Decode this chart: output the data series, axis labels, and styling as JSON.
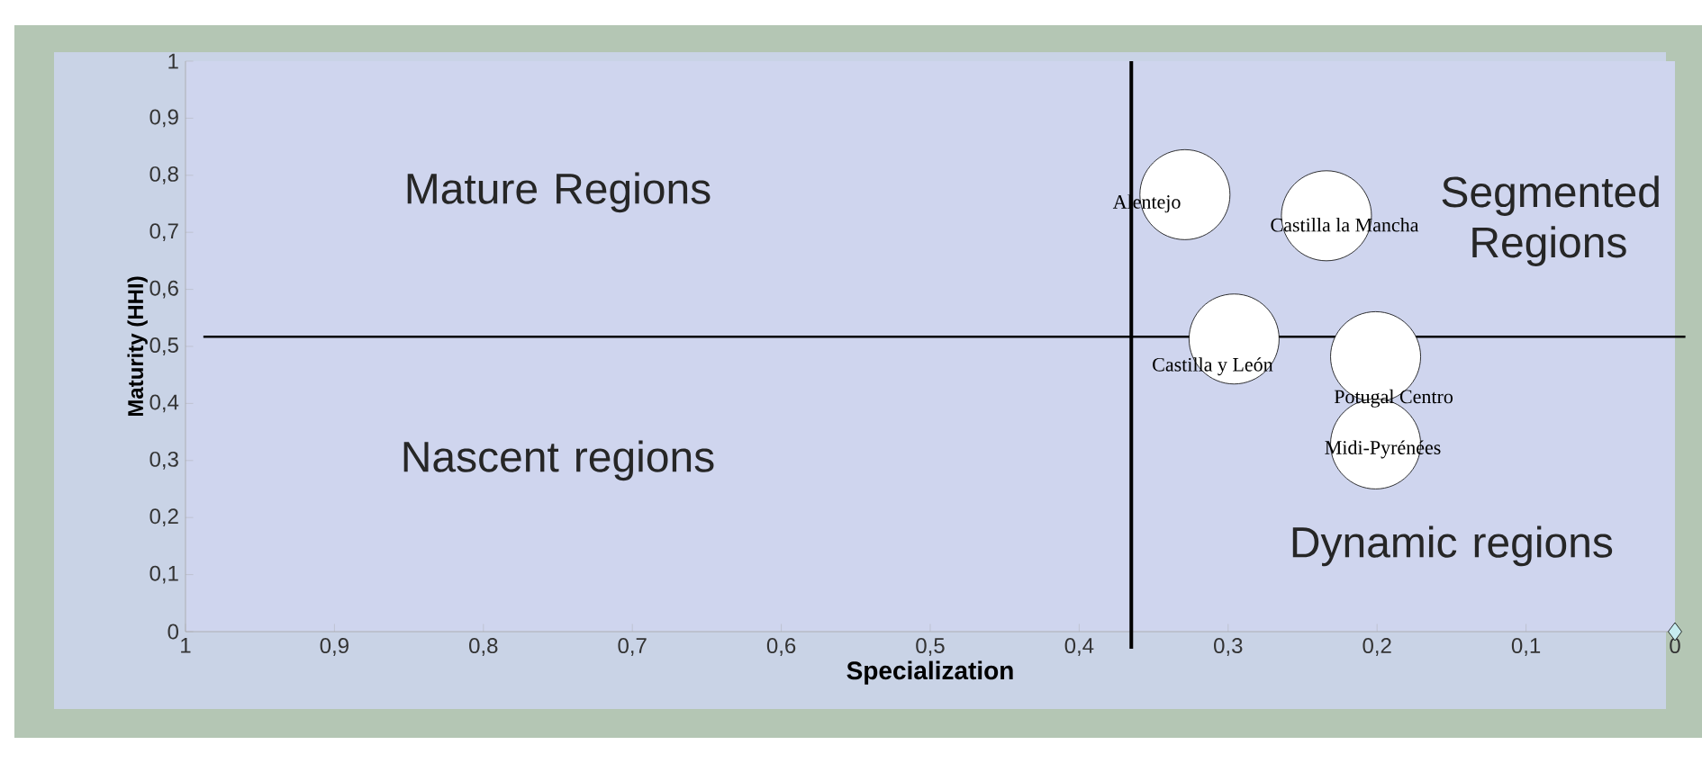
{
  "chart_data": {
    "type": "bubble",
    "xlabel": "Specialization",
    "ylabel": "Maturity (HHI)",
    "xlim": [
      1,
      0
    ],
    "ylim": [
      0,
      1
    ],
    "xticks": [
      1,
      {
        "value": 0.9,
        "label": "0,9"
      },
      {
        "value": 0.8,
        "label": "0,8"
      },
      {
        "value": 0.7,
        "label": "0,7"
      },
      {
        "value": 0.6,
        "label": "0,6"
      },
      {
        "value": 0.5,
        "label": "0,5"
      },
      {
        "value": 0.4,
        "label": "0,4"
      },
      {
        "value": 0.3,
        "label": "0,3"
      },
      {
        "value": 0.2,
        "label": "0,2"
      },
      {
        "value": 0.1,
        "label": "0,1"
      },
      0
    ],
    "yticks": [
      0,
      {
        "value": 0.1,
        "label": "0,1"
      },
      {
        "value": 0.2,
        "label": "0,2"
      },
      {
        "value": 0.3,
        "label": "0,3"
      },
      {
        "value": 0.4,
        "label": "0,4"
      },
      {
        "value": 0.5,
        "label": "0,5"
      },
      {
        "value": 0.6,
        "label": "0,6"
      },
      {
        "value": 0.7,
        "label": "0,7"
      },
      {
        "value": 0.8,
        "label": "0,8"
      },
      {
        "value": 0.9,
        "label": "0,9"
      },
      1
    ],
    "series": [
      {
        "color": "#ffffff",
        "x": [
          0.329,
          0.234,
          0.296,
          0.201,
          0.201
        ],
        "values": [
          0.766,
          0.729,
          0.513,
          0.482,
          0.329
        ],
        "sizes": [
          1,
          1,
          1,
          1,
          1
        ]
      },
      {
        "type": "scatter",
        "color": "#c6ecf0",
        "marker": "diamond",
        "x": [
          0
        ],
        "values": [
          0
        ]
      }
    ],
    "ref_lines": [
      {
        "axis": "x",
        "value": 0.365
      },
      {
        "axis": "y",
        "value": 0.517
      }
    ],
    "annotations": [
      {
        "text": "Alentejo",
        "x": 0.329,
        "y": 0.766
      },
      {
        "text": "Castilla la Mancha",
        "x": 0.234,
        "y": 0.729
      },
      {
        "text": "Castilla y León",
        "x": 0.296,
        "y": 0.513
      },
      {
        "text": "Potugal Centro",
        "x": 0.201,
        "y": 0.482
      },
      {
        "text": "Midi-Pyrénées",
        "x": 0.201,
        "y": 0.329
      },
      "Mature Regions",
      "Segmented Regions",
      "Nascent regions",
      "Dynamic regions"
    ],
    "grid": false
  }
}
